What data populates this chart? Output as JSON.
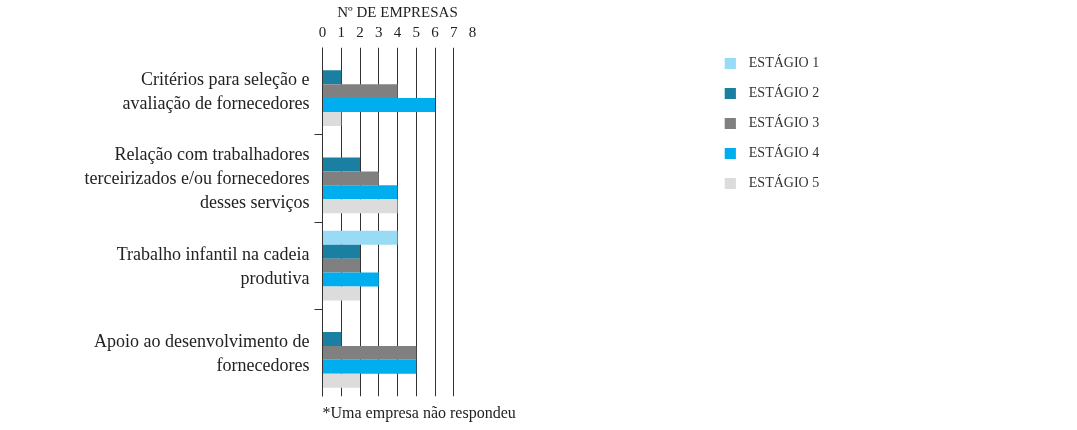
{
  "chart_data": {
    "type": "bar",
    "orientation": "horizontal",
    "xlabel": "Nº DE EMPRESAS",
    "categories": [
      "Critérios para seleção e avaliação de fornecedores",
      "Relação com trabalhadores terceirizados e/ou fornecedores desses serviços",
      "Trabalho infantil na cadeia produtiva",
      "Apoio ao desenvolvimento de fornecedores"
    ],
    "series": [
      {
        "name": "ESTÁGIO 1",
        "color": "#99daf5",
        "values": [
          null,
          null,
          4,
          null
        ]
      },
      {
        "name": "ESTÁGIO 2",
        "color": "#1a7fa1",
        "values": [
          1,
          2,
          2,
          1
        ]
      },
      {
        "name": "ESTÁGIO 3",
        "color": "#808080",
        "values": [
          4,
          3,
          2,
          5
        ]
      },
      {
        "name": "ESTÁGIO 4",
        "color": "#00aeef",
        "values": [
          6,
          4,
          3,
          5
        ]
      },
      {
        "name": "ESTÁGIO 5",
        "color": "#dcdcdd",
        "values": [
          1,
          4,
          2,
          2
        ]
      }
    ],
    "xlim": [
      0,
      8
    ],
    "xticks": [
      0,
      1,
      2,
      3,
      4,
      5,
      6,
      7,
      8
    ],
    "grid": "x",
    "legend": "right",
    "annotations": [
      "*Uma empresa não respondeu"
    ]
  }
}
